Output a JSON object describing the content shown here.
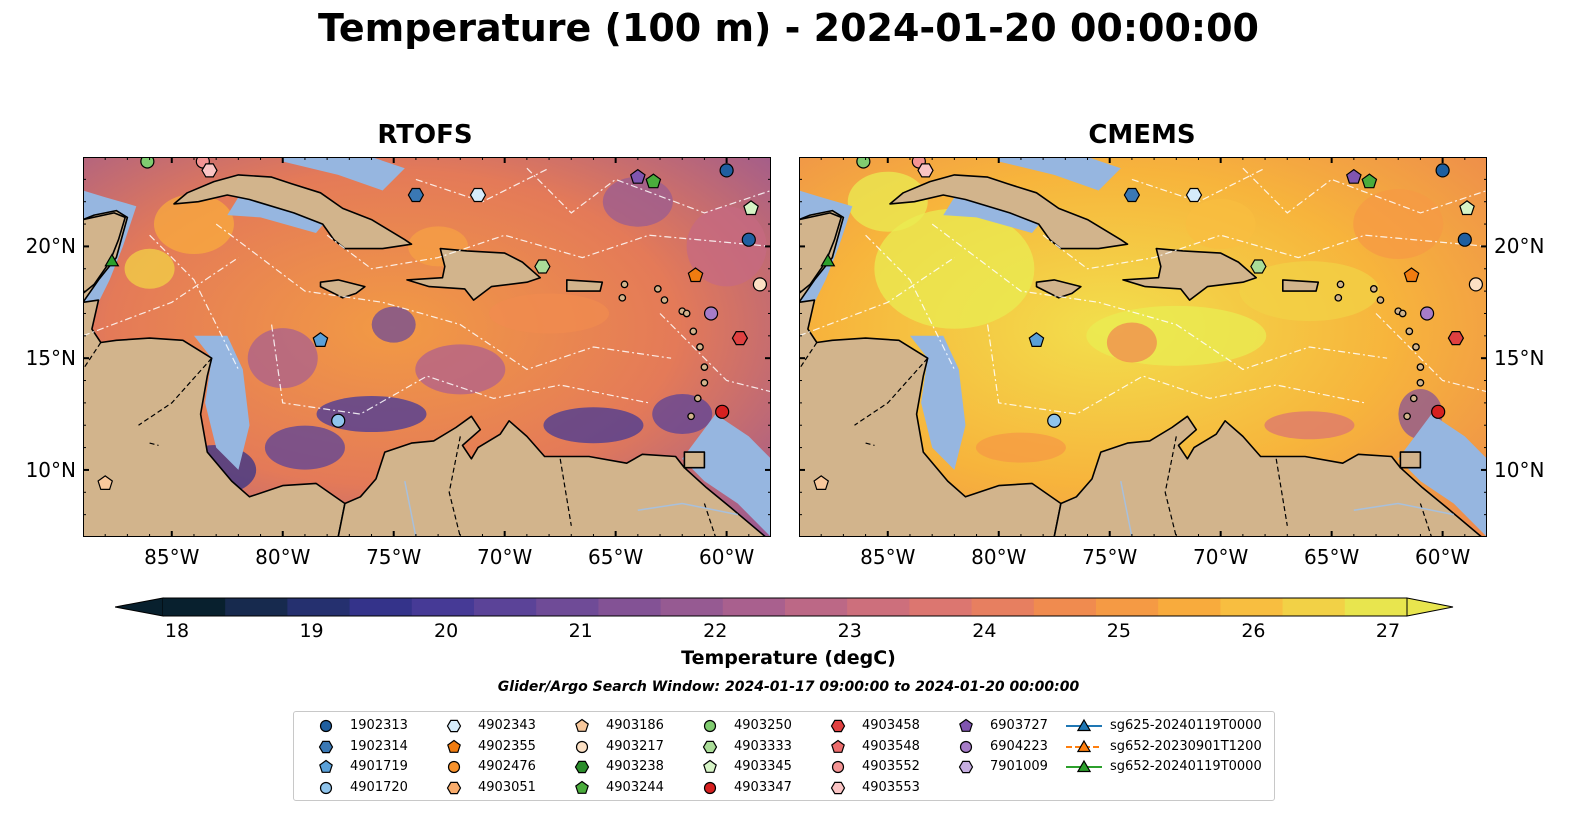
{
  "title": "Temperature (100 m) - 2024-01-20 00:00:00",
  "panels": [
    {
      "title": "RTOFS"
    },
    {
      "title": "CMEMS"
    }
  ],
  "map": {
    "lon_range": [
      -89,
      -58
    ],
    "lat_range": [
      7,
      24
    ],
    "lon_ticks": [
      "85°W",
      "80°W",
      "75°W",
      "70°W",
      "65°W",
      "60°W"
    ],
    "lon_tick_values": [
      -85,
      -80,
      -75,
      -70,
      -65,
      -60
    ],
    "lat_ticks": [
      "20°N",
      "15°N",
      "10°N"
    ],
    "lat_tick_values": [
      20,
      15,
      10
    ],
    "colors": {
      "land": "#d2b48c",
      "shelf": "#96b6e0",
      "pacific": "#0c2436",
      "coast": "#000000"
    }
  },
  "colorbar": {
    "label": "Temperature (degC)",
    "ticks": [
      "18",
      "19",
      "20",
      "21",
      "22",
      "23",
      "24",
      "25",
      "26",
      "27"
    ],
    "min": 18,
    "max": 27,
    "colors": [
      "#08202e",
      "#172a4e",
      "#25306f",
      "#34338a",
      "#463a96",
      "#5b4398",
      "#6f4b97",
      "#835295",
      "#965a92",
      "#a9608e",
      "#bc6886",
      "#cd6f7c",
      "#dc7670",
      "#e77f60",
      "#f08b4f",
      "#f59a44",
      "#f8ab3d",
      "#f8be40",
      "#f2d146",
      "#e8e54e"
    ]
  },
  "search_window": "Glider/Argo Search Window: 2024-01-17 09:00:00 to 2024-01-20 00:00:00",
  "legend": [
    {
      "label": "1902313",
      "marker": "circle",
      "color": "#1f5fa0"
    },
    {
      "label": "1902314",
      "marker": "hexagon",
      "color": "#3a78b4"
    },
    {
      "label": "4901719",
      "marker": "pentagon",
      "color": "#5aa0d8"
    },
    {
      "label": "4901720",
      "marker": "circle",
      "color": "#8fc4ec"
    },
    {
      "label": "4902343",
      "marker": "hexagon",
      "color": "#d6ecfa"
    },
    {
      "label": "4902355",
      "marker": "pentagon",
      "color": "#f07c10"
    },
    {
      "label": "4902476",
      "marker": "circle",
      "color": "#f8922c"
    },
    {
      "label": "4903051",
      "marker": "hexagon",
      "color": "#f8ac6c"
    },
    {
      "label": "4903186",
      "marker": "pentagon",
      "color": "#f8c89c"
    },
    {
      "label": "4903217",
      "marker": "circle",
      "color": "#fce0c4"
    },
    {
      "label": "4903238",
      "marker": "hexagon",
      "color": "#2a8c2a"
    },
    {
      "label": "4903244",
      "marker": "pentagon",
      "color": "#4aac3c"
    },
    {
      "label": "4903250",
      "marker": "circle",
      "color": "#80cc70"
    },
    {
      "label": "4903333",
      "marker": "hexagon",
      "color": "#aadc98"
    },
    {
      "label": "4903345",
      "marker": "pentagon",
      "color": "#d6f4c6"
    },
    {
      "label": "4903347",
      "marker": "circle",
      "color": "#d62020"
    },
    {
      "label": "4903458",
      "marker": "hexagon",
      "color": "#e04040"
    },
    {
      "label": "4903548",
      "marker": "pentagon",
      "color": "#ec6c6c"
    },
    {
      "label": "4903552",
      "marker": "circle",
      "color": "#f49494"
    },
    {
      "label": "4903553",
      "marker": "hexagon",
      "color": "#fac4c4"
    },
    {
      "label": "6903727",
      "marker": "pentagon",
      "color": "#8055b0"
    },
    {
      "label": "6904223",
      "marker": "circle",
      "color": "#a67cc8"
    },
    {
      "label": "7901009",
      "marker": "hexagon",
      "color": "#c6aee0"
    },
    {
      "label": "sg625-20240119T0000",
      "marker": "triangle-line",
      "color": "#1f77b4"
    },
    {
      "label": "sg652-20230901T1200",
      "marker": "triangle-line",
      "color": "#ff7f0e"
    },
    {
      "label": "sg652-20240119T0000",
      "marker": "triangle-line",
      "color": "#2ca02c"
    }
  ],
  "observations": [
    {
      "id": "1902313",
      "lon": -60.0,
      "lat": 23.4
    },
    {
      "id": "1902313",
      "lon": -59.0,
      "lat": 20.3
    },
    {
      "id": "1902314",
      "lon": -74.0,
      "lat": 22.3
    },
    {
      "id": "4901719",
      "lon": -78.3,
      "lat": 15.8
    },
    {
      "id": "4901720",
      "lon": -77.5,
      "lat": 12.2
    },
    {
      "id": "4902343",
      "lon": -71.2,
      "lat": 22.3
    },
    {
      "id": "4902355",
      "lon": -61.4,
      "lat": 18.7
    },
    {
      "id": "4903186",
      "lon": -88.0,
      "lat": 9.4
    },
    {
      "id": "4903217",
      "lon": -58.5,
      "lat": 18.3
    },
    {
      "id": "4903244",
      "lon": -63.3,
      "lat": 22.9
    },
    {
      "id": "4903250",
      "lon": -86.1,
      "lat": 23.8
    },
    {
      "id": "4903333",
      "lon": -68.3,
      "lat": 19.1
    },
    {
      "id": "4903345",
      "lon": -58.9,
      "lat": 21.7
    },
    {
      "id": "4903347",
      "lon": -60.2,
      "lat": 12.6
    },
    {
      "id": "4903458",
      "lon": -59.4,
      "lat": 15.9
    },
    {
      "id": "4903552",
      "lon": -83.6,
      "lat": 23.8
    },
    {
      "id": "4903553",
      "lon": -83.3,
      "lat": 23.4
    },
    {
      "id": "6903727",
      "lon": -64.0,
      "lat": 23.1
    },
    {
      "id": "6904223",
      "lon": -60.7,
      "lat": 17.0
    },
    {
      "id": "sg652-20240119T0000",
      "lon": -87.7,
      "lat": 19.3
    }
  ]
}
